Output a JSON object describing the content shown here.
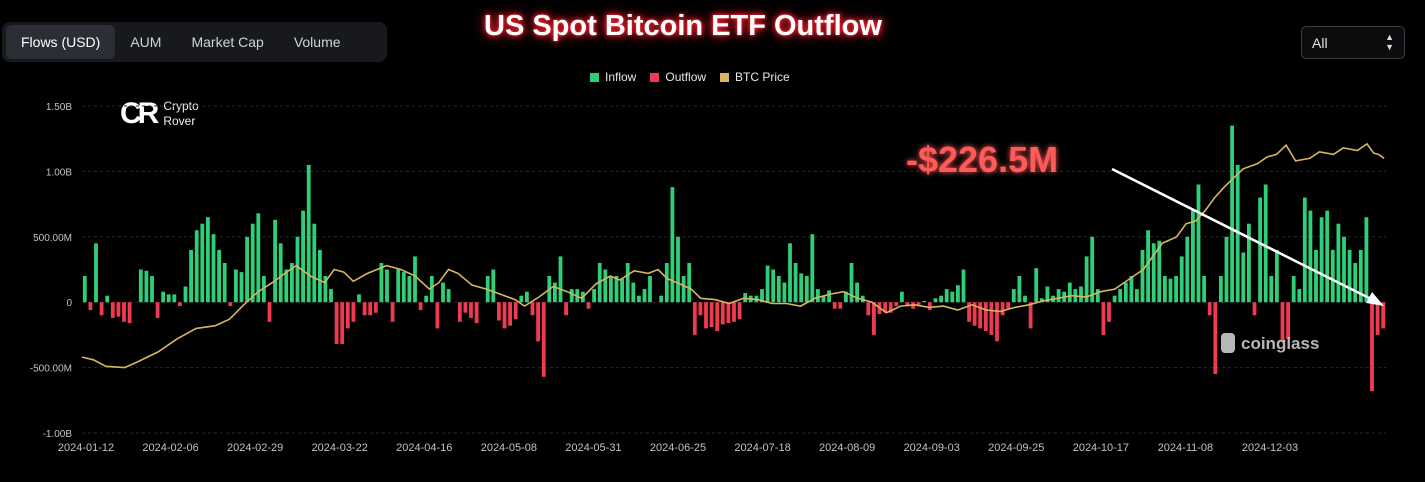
{
  "tabs": [
    {
      "label": "Flows (USD)",
      "active": true
    },
    {
      "label": "AUM",
      "active": false
    },
    {
      "label": "Market Cap",
      "active": false
    },
    {
      "label": "Volume",
      "active": false
    }
  ],
  "range_select": {
    "value": "All"
  },
  "logo": {
    "line1": "Crypto",
    "line2": "Rover"
  },
  "watermark": "coinglass",
  "annotation": "-$226.5M",
  "colors": {
    "inflow": "#2fcf78",
    "outflow": "#ef3a4f",
    "price": "#d7b660"
  },
  "chart_data": {
    "type": "bar",
    "title": "US Spot Bitcoin ETF Outflow",
    "legend": [
      "Inflow",
      "Outflow",
      "BTC Price"
    ],
    "legend_position": "top-center",
    "grid": true,
    "ylim": [
      -1000000000,
      1500000000
    ],
    "y_ticks": [
      "1.50B",
      "1.00B",
      "500.00M",
      "0",
      "-500.00M",
      "-1.00B"
    ],
    "x_ticks": [
      "2024-01-12",
      "2024-02-06",
      "2024-02-29",
      "2024-03-22",
      "2024-04-16",
      "2024-05-08",
      "2024-05-31",
      "2024-06-25",
      "2024-07-18",
      "2024-08-09",
      "2024-09-03",
      "2024-09-25",
      "2024-10-17",
      "2024-11-08",
      "2024-12-03"
    ],
    "flows_musd": [
      200,
      -60,
      450,
      -100,
      50,
      -120,
      -110,
      -150,
      -160,
      0,
      250,
      240,
      200,
      -120,
      80,
      60,
      60,
      -30,
      120,
      400,
      550,
      600,
      650,
      520,
      400,
      300,
      -30,
      250,
      230,
      500,
      600,
      680,
      200,
      -150,
      630,
      450,
      250,
      300,
      500,
      700,
      1050,
      600,
      400,
      200,
      100,
      -320,
      -320,
      -200,
      -150,
      60,
      -100,
      -100,
      -80,
      300,
      250,
      -150,
      250,
      230,
      200,
      350,
      -60,
      50,
      200,
      -200,
      150,
      100,
      0,
      -150,
      -80,
      -120,
      -160,
      0,
      200,
      250,
      -140,
      -200,
      -180,
      -130,
      50,
      80,
      -100,
      -300,
      -570,
      200,
      150,
      350,
      -100,
      100,
      100,
      80,
      -50,
      100,
      300,
      250,
      200,
      200,
      180,
      300,
      150,
      50,
      100,
      200,
      0,
      50,
      300,
      880,
      500,
      200,
      300,
      -250,
      -100,
      -200,
      -190,
      -220,
      -170,
      -160,
      -150,
      -130,
      70,
      50,
      50,
      100,
      280,
      250,
      200,
      150,
      450,
      300,
      220,
      200,
      520,
      100,
      50,
      90,
      -50,
      -50,
      80,
      300,
      150,
      50,
      -100,
      -250,
      -90,
      -80,
      -80,
      -30,
      80,
      -30,
      -50,
      -20,
      10,
      -60,
      30,
      50,
      100,
      80,
      130,
      250,
      -150,
      -180,
      -200,
      -220,
      -250,
      -300,
      -100,
      -50,
      100,
      200,
      50,
      -200,
      260,
      30,
      120,
      50,
      100,
      80,
      150,
      100,
      120,
      350,
      500,
      100,
      -250,
      -150,
      50,
      100,
      150,
      200,
      100,
      400,
      550,
      450,
      470,
      200,
      180,
      200,
      350,
      500,
      700,
      900,
      200,
      -100,
      -550,
      200,
      500,
      1350,
      1050,
      380,
      600,
      -100,
      800,
      900,
      200,
      400,
      -300,
      -280,
      200,
      100,
      800,
      700,
      400,
      650,
      700,
      400,
      600,
      500,
      400,
      300,
      400,
      650,
      -680,
      -250,
      -200
    ],
    "price_points": [
      [
        0,
        -420
      ],
      [
        12,
        -440
      ],
      [
        25,
        -490
      ],
      [
        45,
        -500
      ],
      [
        60,
        -450
      ],
      [
        80,
        -380
      ],
      [
        100,
        -280
      ],
      [
        120,
        -200
      ],
      [
        140,
        -180
      ],
      [
        155,
        -130
      ],
      [
        170,
        -20
      ],
      [
        185,
        80
      ],
      [
        200,
        150
      ],
      [
        215,
        230
      ],
      [
        225,
        280
      ],
      [
        240,
        200
      ],
      [
        255,
        150
      ],
      [
        265,
        250
      ],
      [
        275,
        230
      ],
      [
        285,
        160
      ],
      [
        300,
        220
      ],
      [
        320,
        280
      ],
      [
        335,
        250
      ],
      [
        350,
        200
      ],
      [
        365,
        100
      ],
      [
        375,
        150
      ],
      [
        385,
        250
      ],
      [
        395,
        220
      ],
      [
        410,
        130
      ],
      [
        425,
        100
      ],
      [
        440,
        60
      ],
      [
        455,
        20
      ],
      [
        465,
        -30
      ],
      [
        480,
        40
      ],
      [
        495,
        120
      ],
      [
        510,
        80
      ],
      [
        525,
        30
      ],
      [
        540,
        140
      ],
      [
        555,
        200
      ],
      [
        565,
        170
      ],
      [
        580,
        240
      ],
      [
        595,
        220
      ],
      [
        605,
        250
      ],
      [
        615,
        180
      ],
      [
        625,
        150
      ],
      [
        640,
        100
      ],
      [
        650,
        30
      ],
      [
        665,
        20
      ],
      [
        680,
        -10
      ],
      [
        695,
        30
      ],
      [
        710,
        20
      ],
      [
        725,
        -10
      ],
      [
        740,
        -10
      ],
      [
        755,
        -30
      ],
      [
        770,
        30
      ],
      [
        785,
        60
      ],
      [
        800,
        80
      ],
      [
        815,
        30
      ],
      [
        830,
        0
      ],
      [
        845,
        -80
      ],
      [
        860,
        -30
      ],
      [
        875,
        -20
      ],
      [
        890,
        -40
      ],
      [
        905,
        -30
      ],
      [
        920,
        -60
      ],
      [
        935,
        -20
      ],
      [
        950,
        -60
      ],
      [
        965,
        -70
      ],
      [
        980,
        -40
      ],
      [
        995,
        -20
      ],
      [
        1010,
        10
      ],
      [
        1025,
        30
      ],
      [
        1040,
        50
      ],
      [
        1055,
        40
      ],
      [
        1070,
        80
      ],
      [
        1085,
        100
      ],
      [
        1095,
        150
      ],
      [
        1105,
        200
      ],
      [
        1115,
        250
      ],
      [
        1125,
        350
      ],
      [
        1135,
        450
      ],
      [
        1150,
        500
      ],
      [
        1160,
        600
      ],
      [
        1170,
        620
      ],
      [
        1180,
        700
      ],
      [
        1190,
        800
      ],
      [
        1200,
        880
      ],
      [
        1210,
        950
      ],
      [
        1220,
        1020
      ],
      [
        1235,
        1060
      ],
      [
        1245,
        1110
      ],
      [
        1255,
        1130
      ],
      [
        1265,
        1200
      ],
      [
        1275,
        1080
      ],
      [
        1290,
        1100
      ],
      [
        1300,
        1150
      ],
      [
        1315,
        1130
      ],
      [
        1325,
        1180
      ],
      [
        1340,
        1160
      ],
      [
        1350,
        1210
      ],
      [
        1357,
        1140
      ],
      [
        1362,
        1130
      ],
      [
        1368,
        1100
      ]
    ]
  }
}
